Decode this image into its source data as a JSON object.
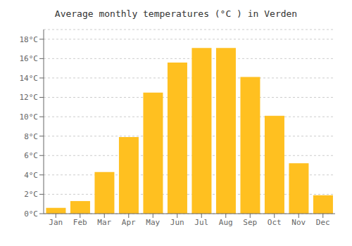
{
  "chart_data": {
    "type": "bar",
    "title": "Average monthly temperatures (°C ) in Verden",
    "categories": [
      "Jan",
      "Feb",
      "Mar",
      "Apr",
      "May",
      "Jun",
      "Jul",
      "Aug",
      "Sep",
      "Oct",
      "Nov",
      "Dec"
    ],
    "values": [
      0.6,
      1.3,
      4.3,
      7.9,
      12.5,
      15.6,
      17.1,
      17.1,
      14.1,
      10.1,
      5.2,
      1.9
    ],
    "color": "#FFC020",
    "ylim": [
      0,
      19
    ],
    "yticks": [
      {
        "value": 0,
        "label": "0°C"
      },
      {
        "value": 2,
        "label": "2°C"
      },
      {
        "value": 4,
        "label": "4°C"
      },
      {
        "value": 6,
        "label": "6°C"
      },
      {
        "value": 8,
        "label": "8°C"
      },
      {
        "value": 10,
        "label": "10°C"
      },
      {
        "value": 12,
        "label": "12°C"
      },
      {
        "value": 14,
        "label": "14°C"
      },
      {
        "value": 16,
        "label": "16°C"
      },
      {
        "value": 18,
        "label": "18°C"
      }
    ],
    "grid": true
  }
}
